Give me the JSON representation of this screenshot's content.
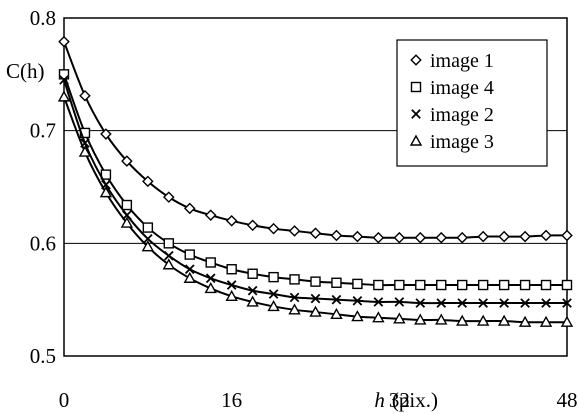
{
  "chart_data": {
    "type": "line",
    "title": "",
    "ylabel": "C(h)",
    "xlabel_var": "h",
    "xlabel_unit": "(pix.)",
    "xlim": [
      0,
      48
    ],
    "ylim": [
      0.5,
      0.8
    ],
    "x_ticks": [
      "0",
      "16",
      "32",
      "48"
    ],
    "x_tick_values": [
      0,
      16,
      32,
      48
    ],
    "y_ticks": [
      "0.5",
      "0.6",
      "0.7",
      "0.8"
    ],
    "y_tick_values": [
      0.5,
      0.6,
      0.7,
      0.8
    ],
    "grid": "horizontal",
    "legend_position": "top-right",
    "x": [
      0,
      2,
      4,
      6,
      8,
      10,
      12,
      14,
      16,
      18,
      20,
      22,
      24,
      26,
      28,
      30,
      32,
      34,
      36,
      38,
      40,
      42,
      44,
      46,
      48
    ],
    "series": [
      {
        "name": "image 1",
        "marker": "diamond",
        "values": [
          0.779,
          0.731,
          0.697,
          0.673,
          0.655,
          0.641,
          0.631,
          0.625,
          0.62,
          0.616,
          0.613,
          0.611,
          0.609,
          0.607,
          0.606,
          0.605,
          0.605,
          0.605,
          0.605,
          0.605,
          0.606,
          0.606,
          0.606,
          0.607,
          0.607
        ]
      },
      {
        "name": "image 4",
        "marker": "square",
        "values": [
          0.75,
          0.698,
          0.661,
          0.634,
          0.614,
          0.6,
          0.59,
          0.583,
          0.577,
          0.573,
          0.57,
          0.568,
          0.566,
          0.565,
          0.564,
          0.563,
          0.563,
          0.563,
          0.563,
          0.563,
          0.563,
          0.563,
          0.563,
          0.563,
          0.563
        ]
      },
      {
        "name": "image 2",
        "marker": "cross",
        "values": [
          0.745,
          0.689,
          0.652,
          0.625,
          0.604,
          0.589,
          0.577,
          0.569,
          0.563,
          0.558,
          0.555,
          0.552,
          0.551,
          0.55,
          0.549,
          0.548,
          0.548,
          0.547,
          0.547,
          0.547,
          0.547,
          0.547,
          0.547,
          0.547,
          0.547
        ]
      },
      {
        "name": "image 3",
        "marker": "triangle",
        "values": [
          0.73,
          0.681,
          0.645,
          0.618,
          0.597,
          0.581,
          0.569,
          0.56,
          0.553,
          0.548,
          0.544,
          0.541,
          0.539,
          0.537,
          0.535,
          0.534,
          0.533,
          0.532,
          0.532,
          0.531,
          0.531,
          0.531,
          0.53,
          0.53,
          0.53
        ]
      }
    ]
  }
}
